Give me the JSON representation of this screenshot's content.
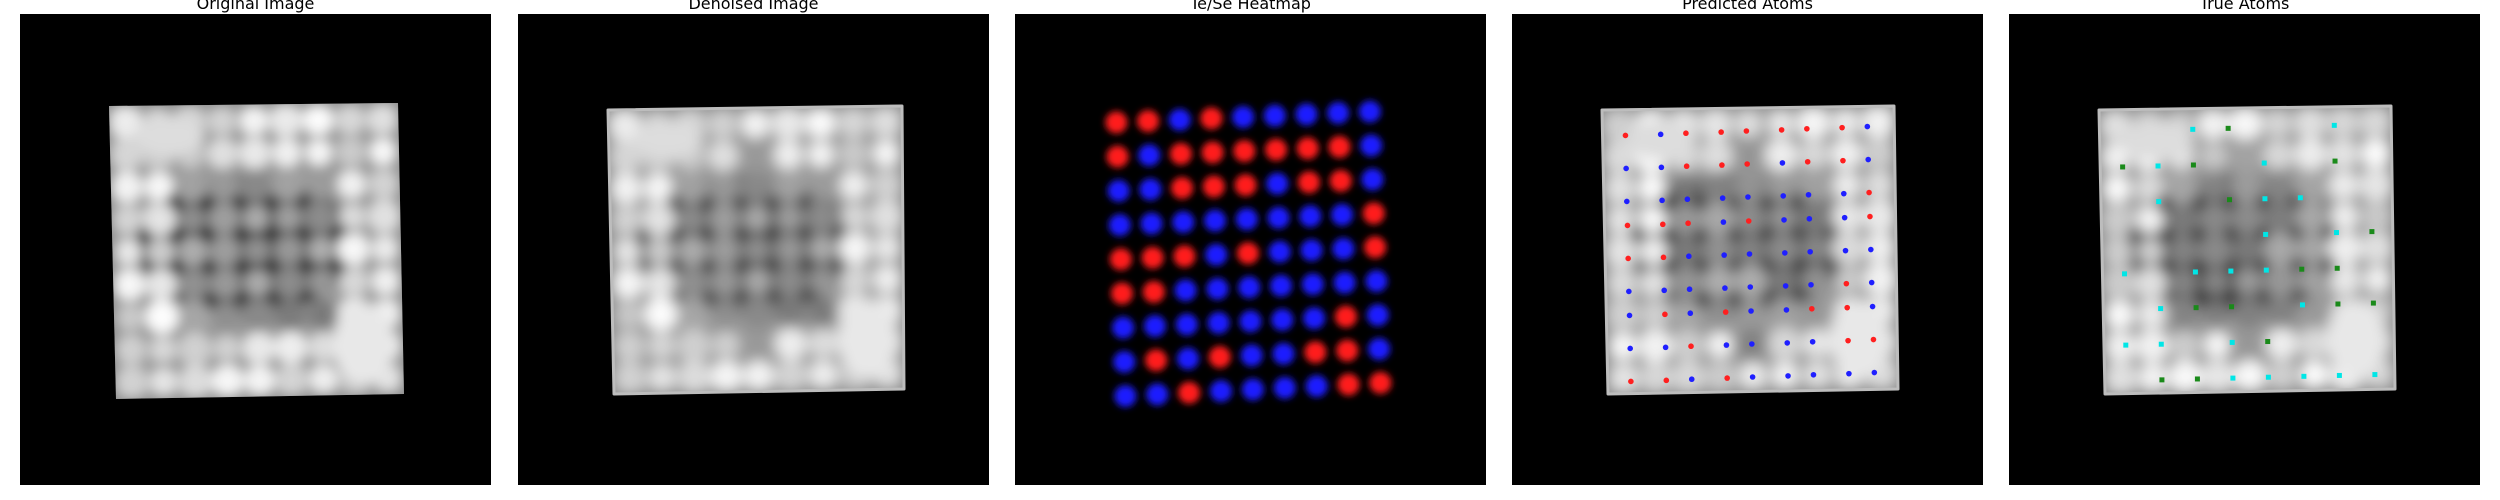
{
  "panels": [
    {
      "title": "Original Image"
    },
    {
      "title": "Denoised Image"
    },
    {
      "title": "Te/Se Heatmap"
    },
    {
      "title": "Predicted Atoms"
    },
    {
      "title": "True Atoms"
    }
  ],
  "legend_colors": {
    "te": "#ff1f1f",
    "se": "#1f1fff",
    "true_a": "#00e6e6",
    "true_b": "#1a8a1a"
  },
  "lattice": {
    "rows": 9,
    "cols": 9
  }
}
